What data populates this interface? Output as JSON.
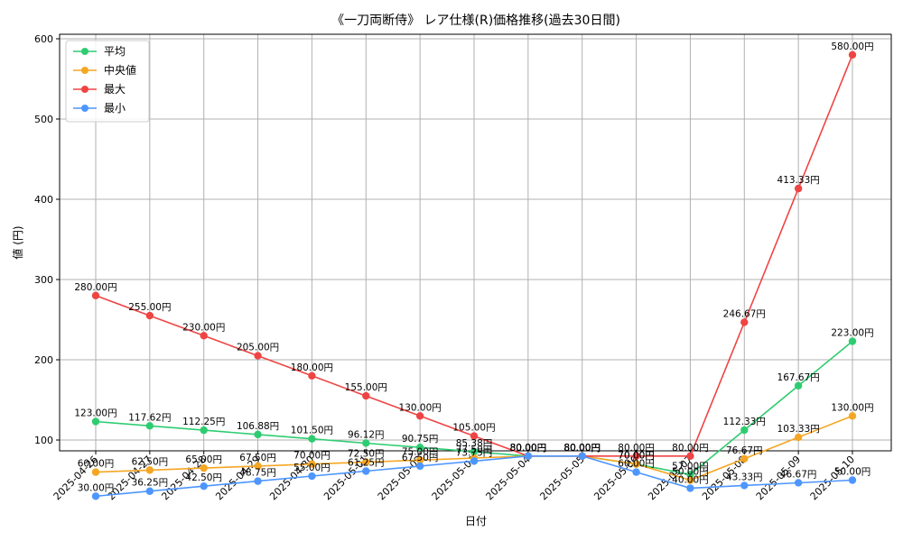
{
  "chart_data": {
    "type": "line",
    "title": "《一刀両断侍》 レア仕様(R)価格推移(過去30日間)",
    "xlabel": "日付",
    "ylabel": "値 (円)",
    "ylim": [
      0,
      600
    ],
    "yticks": [
      100,
      200,
      300,
      400,
      500,
      600
    ],
    "grid": true,
    "legend_position": "top-left",
    "value_suffix": "円",
    "categories": [
      "2025-04-26",
      "2025-04-27",
      "2025-04-28",
      "2025-04-29",
      "2025-04-30",
      "2025-05-01",
      "2025-05-02",
      "2025-05-03",
      "2025-05-04",
      "2025-05-05",
      "2025-05-06",
      "2025-05-07",
      "2025-05-08",
      "2025-05-09",
      "2025-05-10"
    ],
    "series": [
      {
        "name": "平均",
        "color": "#2ecc71",
        "values": [
          123.0,
          117.62,
          112.25,
          106.88,
          101.5,
          96.12,
          90.75,
          85.38,
          80.0,
          80.0,
          70.0,
          57.0,
          112.33,
          167.67,
          223.0
        ]
      },
      {
        "name": "中央値",
        "color": "#f5a623",
        "values": [
          60.0,
          62.5,
          65.0,
          67.5,
          70.0,
          72.5,
          75.0,
          77.5,
          80.0,
          80.0,
          70.0,
          50.0,
          76.67,
          103.33,
          130.0
        ]
      },
      {
        "name": "最大",
        "color": "#ef4444",
        "values": [
          280.0,
          255.0,
          230.0,
          205.0,
          180.0,
          155.0,
          130.0,
          105.0,
          80.0,
          80.0,
          80.0,
          80.0,
          246.67,
          413.33,
          580.0
        ]
      },
      {
        "name": "最小",
        "color": "#4d96ff",
        "values": [
          30.0,
          36.25,
          42.5,
          48.75,
          55.0,
          61.25,
          67.5,
          73.75,
          80.0,
          80.0,
          60.0,
          40.0,
          43.33,
          46.67,
          50.0
        ]
      }
    ]
  }
}
